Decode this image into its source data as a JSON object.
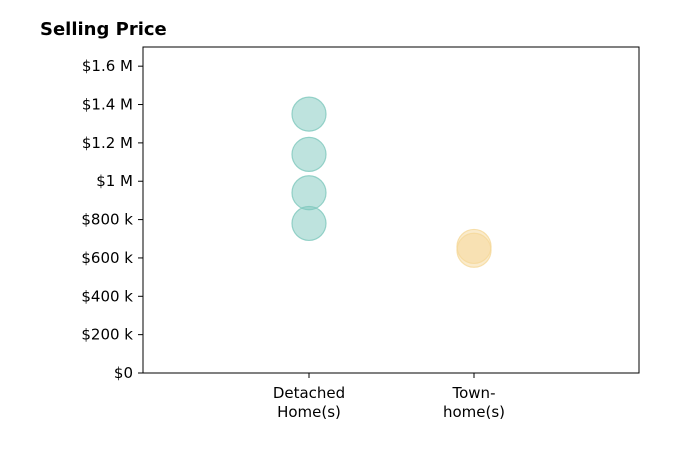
{
  "chart_data": {
    "type": "scatter",
    "title": "Selling Price",
    "xlabel": "",
    "ylabel": "",
    "categories": [
      [
        "Detached",
        "Home(s)"
      ],
      [
        "Town-",
        "home(s)"
      ]
    ],
    "ylim": [
      0,
      1700000
    ],
    "yticks": [
      {
        "value": 0,
        "label": "$0"
      },
      {
        "value": 200000,
        "label": "$200 k"
      },
      {
        "value": 400000,
        "label": "$400 k"
      },
      {
        "value": 600000,
        "label": "$600 k"
      },
      {
        "value": 800000,
        "label": "$800 k"
      },
      {
        "value": 1000000,
        "label": "$1 M"
      },
      {
        "value": 1200000,
        "label": "$1.2 M"
      },
      {
        "value": 1400000,
        "label": "$1.4 M"
      },
      {
        "value": 1600000,
        "label": "$1.6 M"
      }
    ],
    "series": [
      {
        "category_index": 0,
        "color": "#7ec8bd",
        "values": [
          1350000,
          1140000,
          940000,
          780000
        ]
      },
      {
        "category_index": 1,
        "color": "#f5d89a",
        "values": [
          660000,
          640000
        ]
      }
    ],
    "grid": false,
    "legend": "none"
  }
}
